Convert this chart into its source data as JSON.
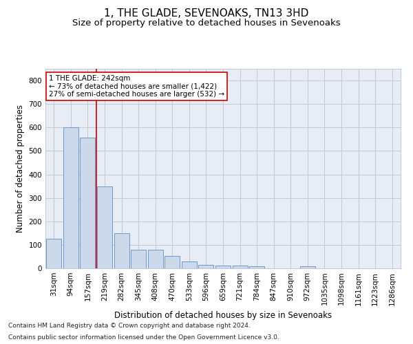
{
  "title": "1, THE GLADE, SEVENOAKS, TN13 3HD",
  "subtitle": "Size of property relative to detached houses in Sevenoaks",
  "xlabel": "Distribution of detached houses by size in Sevenoaks",
  "ylabel": "Number of detached properties",
  "footnote1": "Contains HM Land Registry data © Crown copyright and database right 2024.",
  "footnote2": "Contains public sector information licensed under the Open Government Licence v3.0.",
  "bin_labels": [
    "31sqm",
    "94sqm",
    "157sqm",
    "219sqm",
    "282sqm",
    "345sqm",
    "408sqm",
    "470sqm",
    "533sqm",
    "596sqm",
    "659sqm",
    "721sqm",
    "784sqm",
    "847sqm",
    "910sqm",
    "972sqm",
    "1035sqm",
    "1098sqm",
    "1161sqm",
    "1223sqm",
    "1286sqm"
  ],
  "bar_values": [
    125,
    600,
    558,
    350,
    150,
    80,
    78,
    52,
    30,
    15,
    13,
    13,
    8,
    0,
    0,
    8,
    0,
    0,
    0,
    0,
    0
  ],
  "bar_color": "#ccd9ea",
  "bar_edge_color": "#5b8dc8",
  "reference_line_x": 2.5,
  "reference_line_color": "#cc0000",
  "annotation_text": "1 THE GLADE: 242sqm\n← 73% of detached houses are smaller (1,422)\n27% of semi-detached houses are larger (532) →",
  "annotation_box_color": "#ffffff",
  "annotation_box_edge": "#cc0000",
  "ylim": [
    0,
    850
  ],
  "yticks": [
    0,
    100,
    200,
    300,
    400,
    500,
    600,
    700,
    800
  ],
  "plot_bg_color": "#e8edf5",
  "background_color": "#ffffff",
  "grid_color": "#c0c8d8",
  "title_fontsize": 11,
  "subtitle_fontsize": 9.5,
  "axis_label_fontsize": 8.5,
  "tick_fontsize": 7.5,
  "annotation_fontsize": 7.5,
  "footnote_fontsize": 6.5
}
